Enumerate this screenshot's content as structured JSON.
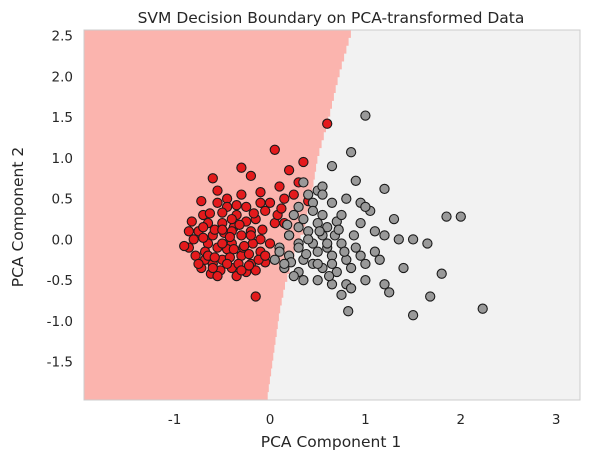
{
  "chart_data": {
    "type": "scatter",
    "title": "SVM Decision Boundary on PCA-transformed Data",
    "xlabel": "PCA Component 1",
    "ylabel": "PCA Component 2",
    "xlim": [
      -1.95,
      3.25
    ],
    "ylim": [
      -1.97,
      2.57
    ],
    "xticks": [
      -1,
      0,
      1,
      2,
      3
    ],
    "yticks": [
      -1.5,
      -1.0,
      -0.5,
      0.0,
      0.5,
      1.0,
      1.5,
      2.0,
      2.5
    ],
    "grid": false,
    "legend": "none",
    "colors": {
      "class_0_region": "#fbb4ae",
      "class_1_region": "#f2f2f2",
      "class_0_points": "#e41a1c",
      "class_1_points": "#999999",
      "edge": "#1a1a1a"
    },
    "decision_boundary": [
      [
        -0.03,
        -1.97
      ],
      [
        0.1,
        -0.9
      ],
      [
        0.15,
        -0.6
      ],
      [
        0.25,
        -0.2
      ],
      [
        0.35,
        0.1
      ],
      [
        0.43,
        0.5
      ],
      [
        0.5,
        1.0
      ],
      [
        0.62,
        1.5
      ],
      [
        0.72,
        2.0
      ],
      [
        0.86,
        2.57
      ]
    ],
    "series": [
      {
        "class": "red",
        "points": [
          [
            0.6,
            1.42
          ],
          [
            -0.3,
            0.88
          ],
          [
            0.05,
            1.1
          ],
          [
            0.2,
            0.85
          ],
          [
            0.35,
            0.95
          ],
          [
            0.3,
            0.7
          ],
          [
            -0.6,
            0.75
          ],
          [
            -0.2,
            0.78
          ],
          [
            0.1,
            0.65
          ],
          [
            -0.55,
            0.6
          ],
          [
            -0.45,
            0.5
          ],
          [
            -0.3,
            0.55
          ],
          [
            -0.1,
            0.58
          ],
          [
            0.0,
            0.45
          ],
          [
            -0.72,
            0.47
          ],
          [
            0.15,
            0.5
          ],
          [
            0.4,
            0.47
          ],
          [
            -0.82,
            0.22
          ],
          [
            -0.75,
            0.1
          ],
          [
            -0.7,
            0.3
          ],
          [
            -0.6,
            0.05
          ],
          [
            -0.5,
            0.2
          ],
          [
            -0.45,
            0.4
          ],
          [
            -0.35,
            0.3
          ],
          [
            -0.25,
            0.4
          ],
          [
            -0.15,
            0.25
          ],
          [
            -0.05,
            0.35
          ],
          [
            0.05,
            0.2
          ],
          [
            -0.65,
            -0.05
          ],
          [
            -0.55,
            -0.1
          ],
          [
            -0.4,
            -0.05
          ],
          [
            -0.3,
            0.05
          ],
          [
            -0.2,
            0.1
          ],
          [
            -0.1,
            0.0
          ],
          [
            -0.85,
            -0.1
          ],
          [
            -0.78,
            -0.2
          ],
          [
            -0.68,
            -0.25
          ],
          [
            -0.6,
            -0.3
          ],
          [
            -0.5,
            -0.25
          ],
          [
            -0.4,
            -0.35
          ],
          [
            -0.3,
            -0.2
          ],
          [
            -0.2,
            -0.3
          ],
          [
            -0.1,
            -0.15
          ],
          [
            0.0,
            -0.05
          ],
          [
            -0.72,
            -0.35
          ],
          [
            -0.62,
            -0.42
          ],
          [
            -0.52,
            -0.38
          ],
          [
            -0.45,
            -0.12
          ],
          [
            -0.35,
            -0.45
          ],
          [
            -0.25,
            -0.4
          ],
          [
            -0.15,
            -0.38
          ],
          [
            -0.05,
            -0.28
          ],
          [
            -0.7,
            0.02
          ],
          [
            -0.58,
            0.12
          ],
          [
            -0.48,
            0.08
          ],
          [
            -0.38,
            0.15
          ],
          [
            -0.28,
            -0.1
          ],
          [
            -0.18,
            -0.05
          ],
          [
            -0.08,
            0.12
          ],
          [
            -0.65,
            0.2
          ],
          [
            -0.4,
            0.1
          ],
          [
            -0.25,
            0.22
          ],
          [
            -0.75,
            -0.3
          ],
          [
            -0.55,
            -0.45
          ],
          [
            -0.33,
            -0.3
          ],
          [
            -0.12,
            -0.25
          ],
          [
            -0.15,
            -0.7
          ],
          [
            -0.63,
            0.32
          ],
          [
            -0.5,
            0.33
          ],
          [
            0.08,
            0.3
          ],
          [
            -0.9,
            -0.08
          ],
          [
            -0.8,
            0.0
          ],
          [
            -0.42,
            -0.22
          ],
          [
            -0.22,
            -0.18
          ],
          [
            -0.5,
            -0.05
          ],
          [
            -0.68,
            -0.15
          ],
          [
            -0.3,
            -0.38
          ],
          [
            -0.55,
            0.45
          ],
          [
            -0.4,
            0.25
          ],
          [
            0.2,
            0.05
          ],
          [
            -0.1,
            0.45
          ],
          [
            0.12,
            0.38
          ],
          [
            -0.65,
            -0.2
          ],
          [
            -0.45,
            -0.3
          ],
          [
            -0.35,
            0.42
          ],
          [
            -0.6,
            -0.35
          ],
          [
            -0.2,
            0.05
          ],
          [
            -0.7,
            0.15
          ],
          [
            -0.38,
            -0.12
          ],
          [
            -0.05,
            -0.2
          ],
          [
            0.15,
            0.2
          ],
          [
            0.25,
            0.55
          ],
          [
            -0.27,
            -0.08
          ],
          [
            -0.5,
            0.12
          ],
          [
            -0.17,
            0.32
          ],
          [
            -0.42,
            0.03
          ],
          [
            -0.58,
            -0.22
          ],
          [
            -0.32,
            0.18
          ],
          [
            -0.22,
            -0.32
          ],
          [
            -0.85,
            0.1
          ]
        ]
      },
      {
        "class": "gray",
        "points": [
          [
            1.0,
            1.52
          ],
          [
            0.65,
            0.9
          ],
          [
            0.85,
            1.07
          ],
          [
            0.35,
            0.7
          ],
          [
            0.5,
            0.6
          ],
          [
            0.55,
            0.65
          ],
          [
            0.9,
            0.72
          ],
          [
            1.2,
            0.62
          ],
          [
            0.3,
            0.4
          ],
          [
            0.45,
            0.45
          ],
          [
            0.55,
            0.55
          ],
          [
            0.65,
            0.45
          ],
          [
            0.8,
            0.5
          ],
          [
            0.95,
            0.45
          ],
          [
            1.05,
            0.35
          ],
          [
            1.0,
            0.4
          ],
          [
            0.25,
            0.3
          ],
          [
            0.35,
            0.25
          ],
          [
            0.5,
            0.2
          ],
          [
            0.6,
            0.15
          ],
          [
            0.7,
            0.22
          ],
          [
            0.75,
            0.3
          ],
          [
            0.4,
            0.1
          ],
          [
            0.55,
            0.05
          ],
          [
            0.2,
            0.05
          ],
          [
            0.3,
            -0.05
          ],
          [
            0.45,
            -0.05
          ],
          [
            0.6,
            -0.1
          ],
          [
            0.75,
            -0.05
          ],
          [
            0.9,
            -0.1
          ],
          [
            1.2,
            0.05
          ],
          [
            1.35,
            0.0
          ],
          [
            1.5,
            0.0
          ],
          [
            1.65,
            -0.05
          ],
          [
            1.3,
            0.25
          ],
          [
            0.1,
            -0.1
          ],
          [
            0.2,
            -0.2
          ],
          [
            0.35,
            -0.25
          ],
          [
            0.5,
            -0.15
          ],
          [
            0.65,
            -0.2
          ],
          [
            0.8,
            -0.25
          ],
          [
            0.95,
            -0.2
          ],
          [
            1.1,
            -0.15
          ],
          [
            1.85,
            0.28
          ],
          [
            2.0,
            0.28
          ],
          [
            0.05,
            -0.25
          ],
          [
            0.15,
            -0.35
          ],
          [
            0.3,
            -0.4
          ],
          [
            0.45,
            -0.3
          ],
          [
            0.55,
            -0.35
          ],
          [
            0.7,
            -0.4
          ],
          [
            0.85,
            -0.35
          ],
          [
            1.0,
            -0.3
          ],
          [
            1.15,
            -0.25
          ],
          [
            1.4,
            -0.35
          ],
          [
            1.8,
            -0.42
          ],
          [
            0.35,
            -0.5
          ],
          [
            0.5,
            -0.5
          ],
          [
            0.65,
            -0.55
          ],
          [
            0.8,
            -0.55
          ],
          [
            1.0,
            -0.5
          ],
          [
            1.2,
            -0.55
          ],
          [
            0.75,
            -0.68
          ],
          [
            0.85,
            -0.6
          ],
          [
            1.25,
            -0.65
          ],
          [
            1.68,
            -0.7
          ],
          [
            0.82,
            -0.88
          ],
          [
            1.5,
            -0.93
          ],
          [
            2.23,
            -0.85
          ],
          [
            0.5,
            -0.3
          ],
          [
            0.3,
            -0.1
          ],
          [
            0.4,
            0.0
          ],
          [
            0.68,
            0.05
          ],
          [
            0.25,
            -0.45
          ],
          [
            0.1,
            -0.15
          ],
          [
            0.4,
            0.55
          ],
          [
            0.55,
            0.3
          ],
          [
            0.65,
            -0.3
          ],
          [
            0.78,
            -0.15
          ],
          [
            0.3,
            0.15
          ],
          [
            0.45,
            0.35
          ],
          [
            0.6,
            -0.05
          ],
          [
            0.18,
            0.18
          ],
          [
            0.22,
            -0.28
          ],
          [
            0.38,
            -0.18
          ],
          [
            0.52,
            0.1
          ],
          [
            0.95,
            0.2
          ],
          [
            1.1,
            0.1
          ],
          [
            0.15,
            -0.3
          ],
          [
            0.62,
            -0.45
          ],
          [
            0.88,
            0.05
          ],
          [
            0.72,
            0.12
          ]
        ]
      }
    ]
  }
}
